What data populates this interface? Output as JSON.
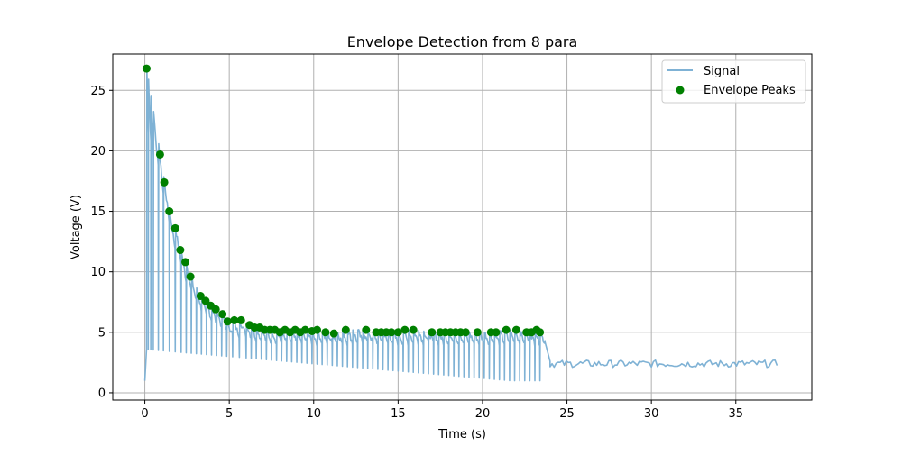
{
  "chart_data": {
    "type": "line",
    "title": "Envelope Detection from 8 para",
    "xlabel": "Time (s)",
    "ylabel": "Voltage (V)",
    "xlim": [
      -1.9,
      39.5
    ],
    "ylim": [
      -0.6,
      28.0
    ],
    "xticks": [
      0,
      5,
      10,
      15,
      20,
      25,
      30,
      35
    ],
    "yticks": [
      0,
      5,
      10,
      15,
      20,
      25
    ],
    "grid": true,
    "legend_position": "upper right",
    "colors": {
      "signal": "#7fb2d5",
      "peaks": "#008000"
    },
    "signal": {
      "name": "Signal",
      "pulse_times": [
        0.1,
        0.2,
        0.35,
        0.5,
        0.8,
        1.1,
        1.45,
        1.8,
        2.15,
        2.45,
        2.75,
        3.05,
        3.35,
        3.65,
        3.95,
        4.25,
        4.55,
        4.85,
        5.2,
        5.6,
        6.0,
        6.3,
        6.6,
        6.9,
        7.2,
        7.5,
        7.8,
        8.1,
        8.4,
        8.7,
        9.0,
        9.3,
        9.6,
        9.9,
        10.2,
        10.5,
        10.8,
        11.1,
        11.4,
        11.7,
        12.0,
        12.3,
        12.6,
        12.9,
        13.2,
        13.5,
        13.8,
        14.1,
        14.4,
        14.7,
        15.0,
        15.3,
        15.6,
        15.9,
        16.2,
        16.5,
        16.8,
        17.1,
        17.4,
        17.7,
        18.0,
        18.3,
        18.6,
        18.9,
        19.2,
        19.5,
        19.8,
        20.1,
        20.4,
        20.7,
        21.0,
        21.3,
        21.6,
        21.9,
        22.2,
        22.5,
        22.8,
        23.1,
        23.4
      ],
      "tail_start": 24.0,
      "tail_end": 37.5,
      "tail_level": 2.4,
      "baseline_min": 1.0
    },
    "peaks": {
      "name": "Envelope Peaks",
      "x": [
        0.1,
        0.9,
        1.15,
        1.45,
        1.8,
        2.1,
        2.4,
        2.7,
        3.3,
        3.6,
        3.9,
        4.2,
        4.6,
        4.9,
        5.3,
        5.7,
        6.2,
        6.5,
        6.8,
        7.1,
        7.4,
        7.7,
        8.0,
        8.3,
        8.6,
        8.9,
        9.2,
        9.5,
        9.9,
        10.2,
        10.7,
        11.2,
        11.9,
        13.1,
        13.7,
        14.0,
        14.3,
        14.6,
        15.0,
        15.4,
        15.9,
        17.0,
        17.5,
        17.8,
        18.1,
        18.4,
        18.7,
        19.0,
        19.7,
        20.5,
        20.8,
        21.4,
        22.0,
        22.6,
        22.9,
        23.2,
        23.4
      ]
    },
    "series": [
      {
        "name": "Signal",
        "values": []
      },
      {
        "name": "Envelope Peaks",
        "values": [
          26.8,
          19.7,
          17.4,
          15.0,
          13.6,
          11.8,
          10.8,
          9.6,
          8.0,
          7.6,
          7.2,
          6.9,
          6.5,
          5.9,
          6.0,
          6.0,
          5.6,
          5.4,
          5.4,
          5.2,
          5.2,
          5.2,
          5.0,
          5.2,
          5.0,
          5.2,
          5.0,
          5.2,
          5.1,
          5.2,
          5.0,
          4.9,
          5.2,
          5.2,
          5.0,
          5.0,
          5.0,
          5.0,
          5.0,
          5.2,
          5.2,
          5.0,
          5.0,
          5.0,
          5.0,
          5.0,
          5.0,
          5.0,
          5.0,
          5.0,
          5.0,
          5.2,
          5.2,
          5.0,
          5.0,
          5.2,
          5.0
        ]
      }
    ]
  }
}
